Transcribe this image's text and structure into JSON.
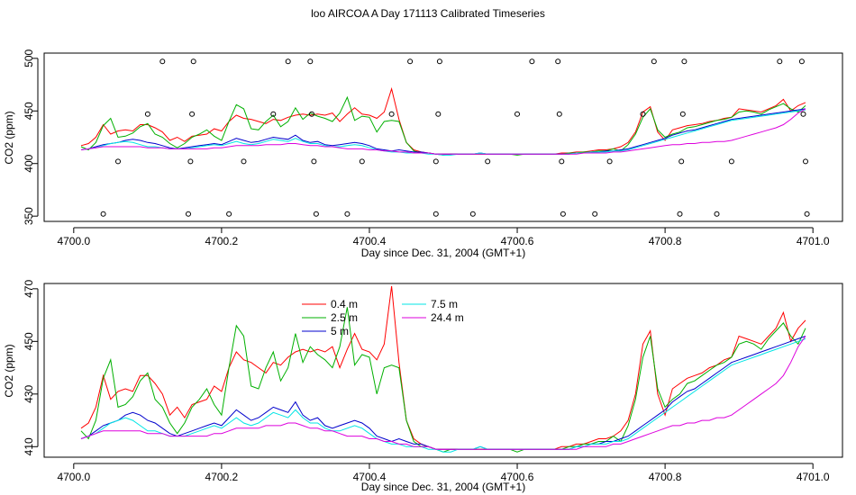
{
  "title": "loo AIRCOA A  Day 171113  Calibrated Timeseries",
  "colors": {
    "0.4 m": "#ff0000",
    "2.5 m": "#00b000",
    "5 m": "#0000cc",
    "7.5 m": "#00e5e5",
    "24.4 m": "#dd00dd"
  },
  "chart_data": [
    {
      "type": "line",
      "xlabel": "Day since Dec. 31, 2004 (GMT+1)",
      "ylabel": "CO2 (ppm)",
      "xlim": [
        4699.96,
        4701.04
      ],
      "ylim": [
        345,
        505
      ],
      "xticks": [
        "4700.0",
        "4700.2",
        "4700.4",
        "4700.6",
        "4700.8",
        "4701.0"
      ],
      "yticks": [
        "350",
        "400",
        "450",
        "500"
      ],
      "x": [
        4700.01,
        4700.02,
        4700.03,
        4700.04,
        4700.05,
        4700.06,
        4700.07,
        4700.08,
        4700.09,
        4700.1,
        4700.11,
        4700.12,
        4700.13,
        4700.14,
        4700.15,
        4700.16,
        4700.17,
        4700.18,
        4700.19,
        4700.2,
        4700.21,
        4700.22,
        4700.23,
        4700.24,
        4700.25,
        4700.26,
        4700.27,
        4700.28,
        4700.29,
        4700.3,
        4700.31,
        4700.32,
        4700.33,
        4700.34,
        4700.35,
        4700.36,
        4700.37,
        4700.38,
        4700.39,
        4700.4,
        4700.41,
        4700.42,
        4700.43,
        4700.44,
        4700.45,
        4700.46,
        4700.47,
        4700.48,
        4700.49,
        4700.5,
        4700.51,
        4700.52,
        4700.53,
        4700.54,
        4700.55,
        4700.56,
        4700.57,
        4700.58,
        4700.59,
        4700.6,
        4700.61,
        4700.62,
        4700.63,
        4700.64,
        4700.65,
        4700.66,
        4700.67,
        4700.68,
        4700.69,
        4700.7,
        4700.71,
        4700.72,
        4700.73,
        4700.74,
        4700.75,
        4700.76,
        4700.77,
        4700.78,
        4700.79,
        4700.8,
        4700.81,
        4700.82,
        4700.83,
        4700.84,
        4700.85,
        4700.86,
        4700.87,
        4700.88,
        4700.89,
        4700.9,
        4700.91,
        4700.92,
        4700.93,
        4700.94,
        4700.95,
        4700.96,
        4700.97,
        4700.98,
        4700.99
      ],
      "series": [
        {
          "name": "0.4 m",
          "values": [
            417,
            419,
            425,
            437,
            428,
            431,
            432,
            431,
            437,
            437,
            434,
            430,
            422,
            425,
            421,
            426,
            427,
            428,
            433,
            431,
            440,
            446,
            443,
            442,
            440,
            438,
            442,
            441,
            444,
            446,
            447,
            446,
            447,
            446,
            448,
            440,
            447,
            453,
            447,
            446,
            443,
            449,
            471,
            442,
            420,
            413,
            411,
            410,
            409,
            409,
            409,
            409,
            409,
            409,
            409,
            409,
            409,
            409,
            409,
            409,
            409,
            409,
            409,
            409,
            409,
            410,
            410,
            411,
            411,
            412,
            413,
            413,
            414,
            416,
            420,
            430,
            449,
            454,
            430,
            422,
            432,
            434,
            436,
            437,
            438,
            440,
            441,
            443,
            444,
            452,
            451,
            450,
            449,
            452,
            455,
            461,
            450,
            455,
            458
          ]
        },
        {
          "name": "2.5 m",
          "values": [
            416,
            413,
            420,
            436,
            443,
            425,
            426,
            429,
            435,
            438,
            428,
            425,
            419,
            415,
            419,
            425,
            428,
            432,
            426,
            422,
            440,
            456,
            452,
            433,
            432,
            440,
            446,
            435,
            440,
            453,
            442,
            448,
            445,
            443,
            440,
            448,
            463,
            441,
            445,
            444,
            430,
            440,
            441,
            440,
            420,
            412,
            410,
            410,
            409,
            408,
            409,
            409,
            409,
            409,
            409,
            409,
            409,
            409,
            409,
            408,
            409,
            409,
            409,
            409,
            409,
            409,
            410,
            410,
            411,
            411,
            412,
            412,
            414,
            412,
            418,
            428,
            444,
            452,
            432,
            425,
            428,
            430,
            434,
            435,
            437,
            439,
            441,
            442,
            444,
            449,
            450,
            449,
            447,
            451,
            454,
            457,
            452,
            449,
            455
          ]
        },
        {
          "name": "5 m",
          "values": [
            413,
            414,
            416,
            418,
            419,
            420,
            422,
            423,
            422,
            420,
            419,
            417,
            415,
            414,
            415,
            416,
            417,
            418,
            419,
            418,
            421,
            424,
            422,
            420,
            421,
            423,
            425,
            424,
            423,
            427,
            422,
            420,
            421,
            418,
            417,
            418,
            419,
            420,
            419,
            417,
            414,
            413,
            412,
            413,
            412,
            411,
            411,
            410,
            409,
            409,
            409,
            409,
            409,
            409,
            410,
            409,
            409,
            409,
            409,
            409,
            409,
            409,
            409,
            409,
            409,
            409,
            409,
            410,
            410,
            411,
            411,
            412,
            412,
            413,
            414,
            416,
            418,
            420,
            422,
            424,
            427,
            429,
            431,
            432,
            434,
            436,
            438,
            440,
            442,
            443,
            444,
            445,
            446,
            447,
            448,
            449,
            450,
            451,
            452
          ]
        },
        {
          "name": "7.5 m",
          "values": [
            413,
            414,
            415,
            417,
            419,
            420,
            421,
            420,
            418,
            416,
            416,
            415,
            414,
            414,
            414,
            415,
            416,
            417,
            418,
            417,
            419,
            421,
            419,
            418,
            419,
            421,
            423,
            422,
            421,
            424,
            421,
            419,
            419,
            417,
            416,
            416,
            417,
            418,
            417,
            415,
            413,
            412,
            411,
            411,
            410,
            410,
            410,
            409,
            409,
            408,
            408,
            409,
            409,
            409,
            410,
            409,
            409,
            409,
            409,
            409,
            409,
            409,
            409,
            409,
            409,
            409,
            409,
            410,
            410,
            411,
            411,
            411,
            412,
            412,
            413,
            415,
            417,
            419,
            421,
            423,
            425,
            427,
            429,
            431,
            433,
            435,
            437,
            439,
            441,
            442,
            443,
            444,
            445,
            446,
            447,
            448,
            449,
            450,
            451
          ]
        },
        {
          "name": "24.4 m",
          "values": [
            413,
            414,
            415,
            416,
            416,
            416,
            416,
            416,
            416,
            415,
            415,
            415,
            414,
            414,
            414,
            414,
            414,
            414,
            415,
            415,
            416,
            417,
            417,
            417,
            417,
            418,
            418,
            418,
            419,
            419,
            418,
            417,
            417,
            416,
            416,
            415,
            414,
            414,
            414,
            413,
            413,
            412,
            412,
            411,
            411,
            410,
            410,
            410,
            409,
            409,
            409,
            409,
            409,
            409,
            409,
            409,
            409,
            409,
            409,
            409,
            409,
            409,
            409,
            409,
            409,
            409,
            409,
            409,
            410,
            410,
            410,
            410,
            411,
            411,
            412,
            413,
            414,
            415,
            416,
            417,
            418,
            418,
            419,
            419,
            420,
            420,
            421,
            421,
            422,
            424,
            426,
            428,
            430,
            432,
            434,
            437,
            442,
            448,
            452
          ]
        }
      ],
      "outliers": [
        {
          "x": 4700.04,
          "y": 352
        },
        {
          "x": 4700.06,
          "y": 402
        },
        {
          "x": 4700.1,
          "y": 447
        },
        {
          "x": 4700.12,
          "y": 497
        },
        {
          "x": 4700.155,
          "y": 352
        },
        {
          "x": 4700.158,
          "y": 402
        },
        {
          "x": 4700.16,
          "y": 447
        },
        {
          "x": 4700.162,
          "y": 497
        },
        {
          "x": 4700.21,
          "y": 352
        },
        {
          "x": 4700.23,
          "y": 402
        },
        {
          "x": 4700.27,
          "y": 447
        },
        {
          "x": 4700.29,
          "y": 497
        },
        {
          "x": 4700.32,
          "y": 497
        },
        {
          "x": 4700.322,
          "y": 447
        },
        {
          "x": 4700.325,
          "y": 402
        },
        {
          "x": 4700.328,
          "y": 352
        },
        {
          "x": 4700.37,
          "y": 352
        },
        {
          "x": 4700.39,
          "y": 402
        },
        {
          "x": 4700.43,
          "y": 447
        },
        {
          "x": 4700.455,
          "y": 497
        },
        {
          "x": 4700.49,
          "y": 352
        },
        {
          "x": 4700.49,
          "y": 402
        },
        {
          "x": 4700.493,
          "y": 447
        },
        {
          "x": 4700.495,
          "y": 497
        },
        {
          "x": 4700.54,
          "y": 352
        },
        {
          "x": 4700.56,
          "y": 402
        },
        {
          "x": 4700.6,
          "y": 447
        },
        {
          "x": 4700.62,
          "y": 497
        },
        {
          "x": 4700.655,
          "y": 497
        },
        {
          "x": 4700.657,
          "y": 447
        },
        {
          "x": 4700.66,
          "y": 402
        },
        {
          "x": 4700.662,
          "y": 352
        },
        {
          "x": 4700.705,
          "y": 352
        },
        {
          "x": 4700.725,
          "y": 402
        },
        {
          "x": 4700.77,
          "y": 447
        },
        {
          "x": 4700.785,
          "y": 497
        },
        {
          "x": 4700.82,
          "y": 352
        },
        {
          "x": 4700.822,
          "y": 402
        },
        {
          "x": 4700.824,
          "y": 447
        },
        {
          "x": 4700.826,
          "y": 497
        },
        {
          "x": 4700.87,
          "y": 352
        },
        {
          "x": 4700.89,
          "y": 402
        },
        {
          "x": 4700.955,
          "y": 497
        },
        {
          "x": 4700.985,
          "y": 497
        },
        {
          "x": 4700.987,
          "y": 447
        },
        {
          "x": 4700.99,
          "y": 402
        },
        {
          "x": 4700.992,
          "y": 352
        }
      ]
    },
    {
      "type": "line",
      "xlabel": "Day since Dec. 31, 2004 (GMT+1)",
      "ylabel": "CO2 (ppm)",
      "xlim": [
        4699.96,
        4701.04
      ],
      "ylim": [
        406,
        472
      ],
      "xticks": [
        "4700.0",
        "4700.2",
        "4700.4",
        "4700.6",
        "4700.8",
        "4701.0"
      ],
      "yticks": [
        "410",
        "430",
        "450",
        "470"
      ],
      "legend": "top-left",
      "legend_entries": [
        "0.4 m",
        "2.5 m",
        "5 m",
        "7.5 m",
        "24.4 m"
      ],
      "same_series_as_panel": 0
    }
  ]
}
